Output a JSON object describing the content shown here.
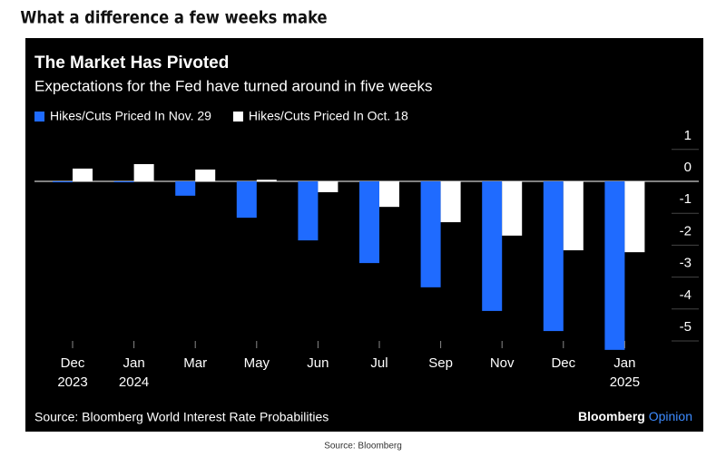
{
  "headline": "What a difference a few weeks make",
  "chart_data": {
    "type": "bar",
    "title": "The Market Has Pivoted",
    "subtitle": "Expectations for the Fed have turned around in five weeks",
    "categories": [
      [
        "Dec",
        "2023"
      ],
      [
        "Jan",
        "2024"
      ],
      [
        "Mar"
      ],
      [
        "May"
      ],
      [
        "Jun"
      ],
      [
        "Jul"
      ],
      [
        "Sep"
      ],
      [
        "Nov"
      ],
      [
        "Dec"
      ],
      [
        "Jan",
        "2025"
      ]
    ],
    "series": [
      {
        "name": "Hikes/Cuts Priced In Nov. 29",
        "color": "#1f6bff",
        "values": [
          -0.03,
          -0.03,
          -0.45,
          -1.14,
          -1.85,
          -2.56,
          -3.32,
          -4.06,
          -4.69,
          -5.28
        ]
      },
      {
        "name": "Hikes/Cuts Priced In Oct. 18",
        "color": "#ffffff",
        "values": [
          0.4,
          0.54,
          0.37,
          0.05,
          -0.34,
          -0.8,
          -1.28,
          -1.7,
          -2.16,
          -2.22
        ]
      }
    ],
    "ylim": [
      -5.5,
      1.4
    ],
    "yticks": [
      1,
      0,
      -1,
      -2,
      -3,
      -4,
      -5
    ],
    "source": "Source: Bloomberg World Interest Rate Probabilities",
    "brand": "Bloomberg",
    "brand_sub": "Opinion"
  },
  "credit": "Source: Bloomberg"
}
